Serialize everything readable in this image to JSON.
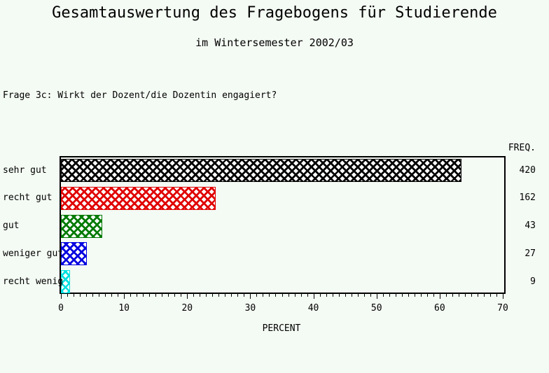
{
  "page": {
    "background_color": "#f4faf4"
  },
  "chart_data": {
    "type": "bar",
    "orientation": "horizontal",
    "title": "Gesamtauswertung des Fragebogens für Studierende",
    "subtitle": "im Wintersemester 2002/03",
    "annotation": "Frage 3c: Wirkt der Dozent/die Dozentin engagiert?",
    "categories": [
      "sehr gut",
      "recht gut",
      "gut",
      "weniger gut",
      "recht wenig"
    ],
    "values_percent": [
      63.5,
      24.5,
      6.5,
      4.1,
      1.4
    ],
    "frequencies": [
      420,
      162,
      43,
      27,
      9
    ],
    "freq_column_header": "FREQ.",
    "xlabel": "PERCENT",
    "xlim": [
      0,
      70
    ],
    "x_major_ticks": [
      0,
      10,
      20,
      30,
      40,
      50,
      60,
      70
    ],
    "x_minor_tick_step": 1,
    "grid": false,
    "legend": false,
    "bar_fill_style": "crosshatch",
    "bar_colors": [
      "#000000",
      "#e00000",
      "#007a00",
      "#0000e0",
      "#00e0e0"
    ],
    "frame_color": "#000000"
  }
}
